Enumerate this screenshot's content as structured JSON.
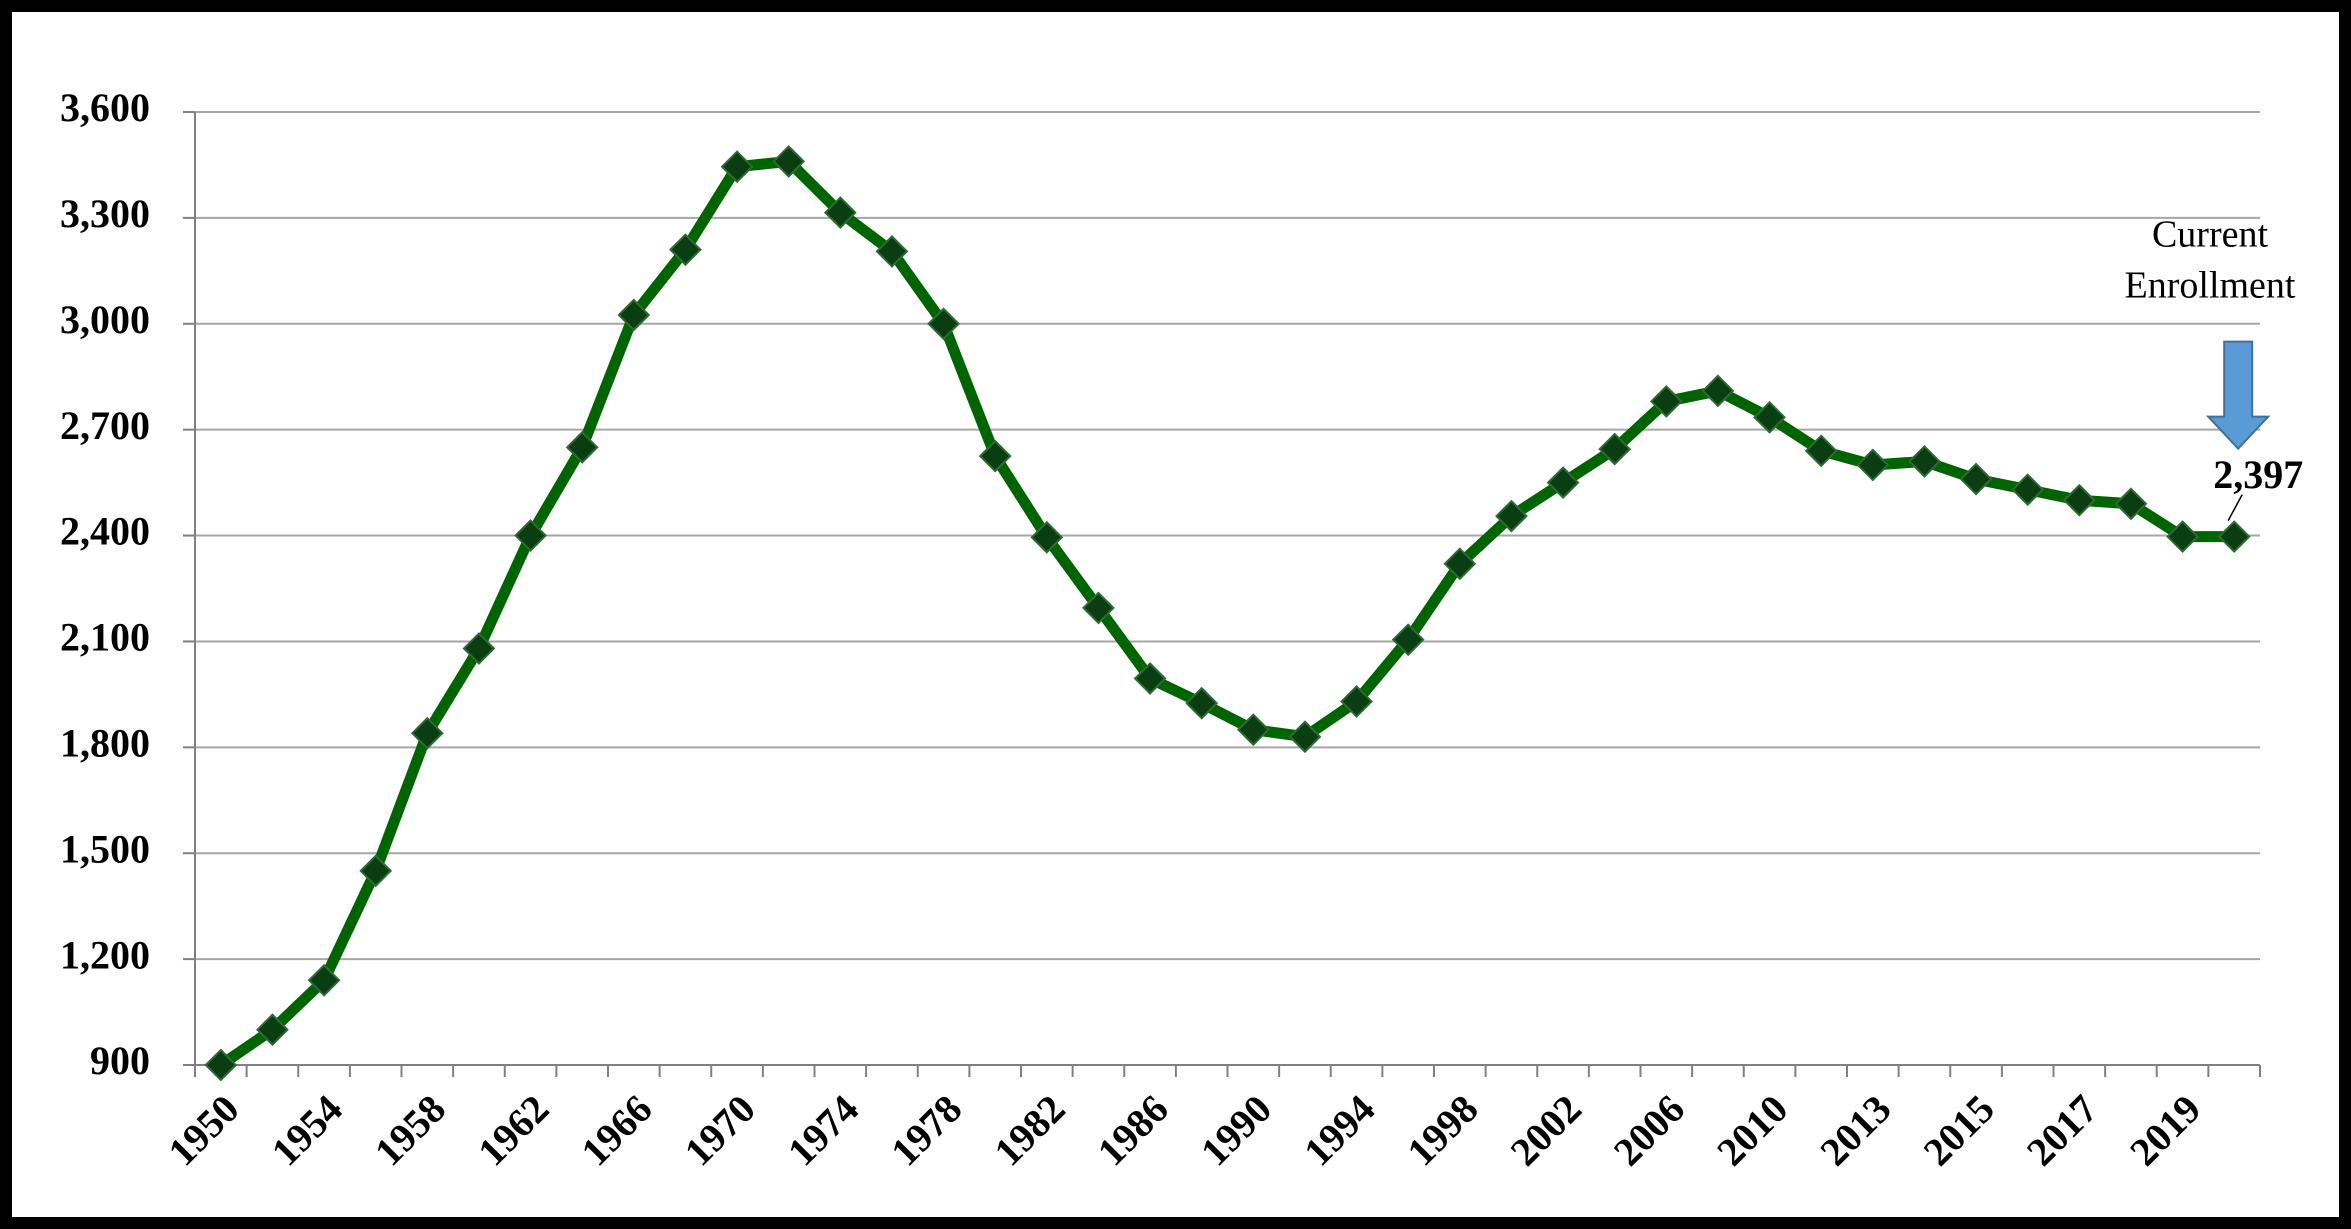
{
  "chart_data": {
    "type": "line",
    "categories": [
      "1950",
      null,
      "1954",
      null,
      "1958",
      null,
      "1962",
      null,
      "1966",
      null,
      "1970",
      null,
      "1974",
      null,
      "1978",
      null,
      "1982",
      null,
      "1986",
      null,
      "1990",
      null,
      "1994",
      null,
      "1998",
      null,
      "2002",
      null,
      "2006",
      null,
      "2010",
      null,
      "2013",
      null,
      "2015",
      null,
      "2017",
      null,
      "2019",
      null
    ],
    "series": [
      {
        "color": "#006400",
        "marker_color": "#0b3d12",
        "values": [
          900,
          1000,
          1140,
          1450,
          1840,
          2080,
          2400,
          2650,
          3025,
          3210,
          3445,
          3460,
          3315,
          3205,
          3000,
          2625,
          2395,
          2195,
          1995,
          1925,
          1850,
          1830,
          1930,
          2105,
          2320,
          2455,
          2550,
          2645,
          2780,
          2810,
          2735,
          2640,
          2600,
          2610,
          2560,
          2530,
          2500,
          2490,
          2397,
          2397
        ],
        "value_labels": [
          null,
          null,
          null,
          null,
          null,
          null,
          null,
          null,
          null,
          null,
          null,
          null,
          null,
          null,
          null,
          null,
          null,
          null,
          null,
          null,
          null,
          null,
          null,
          null,
          null,
          null,
          null,
          null,
          null,
          null,
          null,
          null,
          null,
          null,
          null,
          null,
          null,
          null,
          null,
          "2,397"
        ]
      }
    ],
    "annotation": [
      "Current",
      "Enrollment"
    ],
    "arrow_color": "#5b9bd5",
    "ylim": [
      900,
      3600
    ],
    "yticks": [
      {
        "value": 900,
        "label": "900"
      },
      {
        "value": 1200,
        "label": "1,200"
      },
      {
        "value": 1500,
        "label": "1,500"
      },
      {
        "value": 1800,
        "label": "1,800"
      },
      {
        "value": 2100,
        "label": "2,100"
      },
      {
        "value": 2400,
        "label": "2,400"
      },
      {
        "value": 2700,
        "label": "2,700"
      },
      {
        "value": 3000,
        "label": "3,000"
      },
      {
        "value": 3300,
        "label": "3,300"
      },
      {
        "value": 3600,
        "label": "3,600"
      }
    ],
    "grid": true
  }
}
